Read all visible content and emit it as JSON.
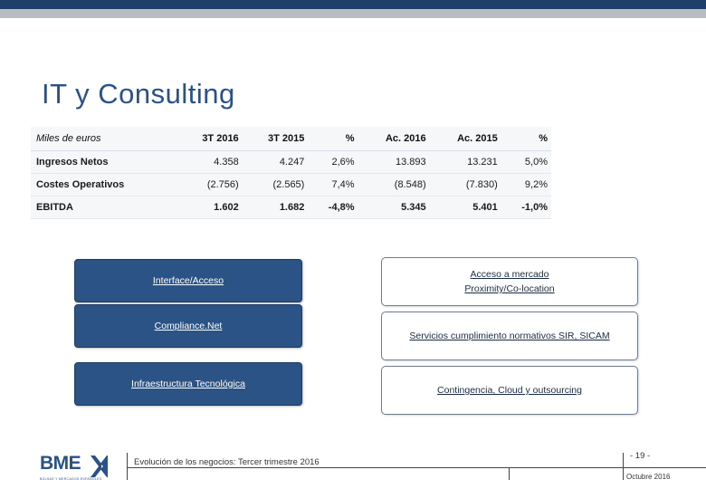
{
  "title": "IT y Consulting",
  "table": {
    "headers": [
      "Miles de euros",
      "3T 2016",
      "3T 2015",
      "%",
      "Ac. 2016",
      "Ac. 2015",
      "%"
    ],
    "rows": [
      [
        "Ingresos Netos",
        "4.358",
        "4.247",
        "2,6%",
        "13.893",
        "13.231",
        "5,0%"
      ],
      [
        "Costes Operativos",
        "(2.756)",
        "(2.565)",
        "7,4%",
        "(8.548)",
        "(7.830)",
        "9,2%"
      ],
      [
        "EBITDA",
        "1.602",
        "1.682",
        "-4,8%",
        "5.345",
        "5.401",
        "-1,0%"
      ]
    ]
  },
  "left_boxes": [
    "Interface/Acceso",
    "Compliance.Net",
    "Infraestructura Tecnológica"
  ],
  "right_boxes": [
    [
      "Acceso a mercado",
      "Proximity/Co-location"
    ],
    [
      "Servicios cumplimiento normativos SIR, SICAM"
    ],
    [
      "Contingencia, Cloud y outsourcing"
    ]
  ],
  "footer": {
    "text": "Evolución de los negocios: Tercer trimestre 2016",
    "page": "- 19 -",
    "date": "Octubre 2016"
  },
  "logo": {
    "text": "BME",
    "subtitle": "BOLSAS Y MERCADOS ESPAÑOLES",
    "brand_color": "#2a5288"
  }
}
